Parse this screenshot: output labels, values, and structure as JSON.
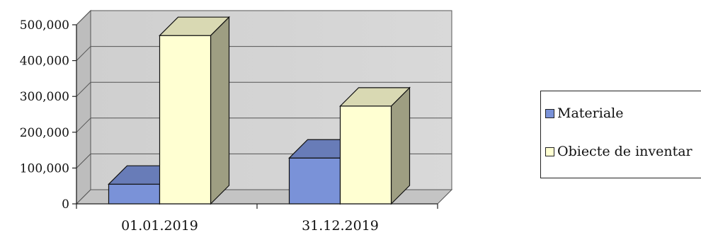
{
  "chart_data": {
    "type": "bar",
    "categories": [
      "01.01.2019",
      "31.12.2019"
    ],
    "series": [
      {
        "name": "Materiale",
        "values": [
          55000,
          128000
        ],
        "color": "#7A92D8"
      },
      {
        "name": "Obiecte de inventar",
        "values": [
          470000,
          273000
        ],
        "color": "#FFFFD2"
      }
    ],
    "ylim": [
      0,
      500000
    ],
    "yticks": [
      0,
      100000,
      200000,
      300000,
      400000,
      500000
    ],
    "ytick_labels": [
      "0",
      "100,000",
      "200,000",
      "300,000",
      "400,000",
      "500,000"
    ],
    "title": "",
    "xlabel": "",
    "ylabel": "",
    "grid": true,
    "style": "3d-column",
    "legend_position": "right"
  }
}
